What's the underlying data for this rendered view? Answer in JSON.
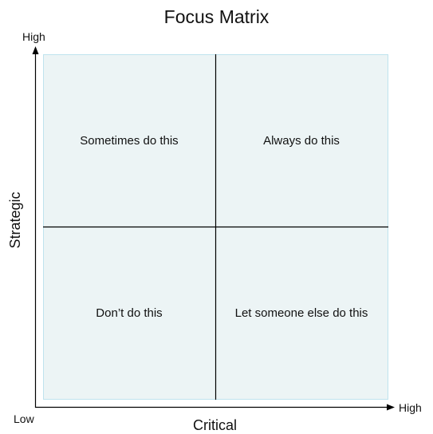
{
  "title": "Focus Matrix",
  "axes": {
    "x": {
      "label": "Critical",
      "low": "Low",
      "high": "High"
    },
    "y": {
      "label": "Strategic",
      "high": "High"
    }
  },
  "quadrants": {
    "top_left": "Sometimes do this",
    "top_right": "Always do this",
    "bottom_left": "Don’t do this",
    "bottom_right": "Let someone else do this"
  },
  "colors": {
    "quadrant_fill": "#ecf4f5",
    "quadrant_border": "#bfe3ee",
    "axis": "#000000"
  }
}
